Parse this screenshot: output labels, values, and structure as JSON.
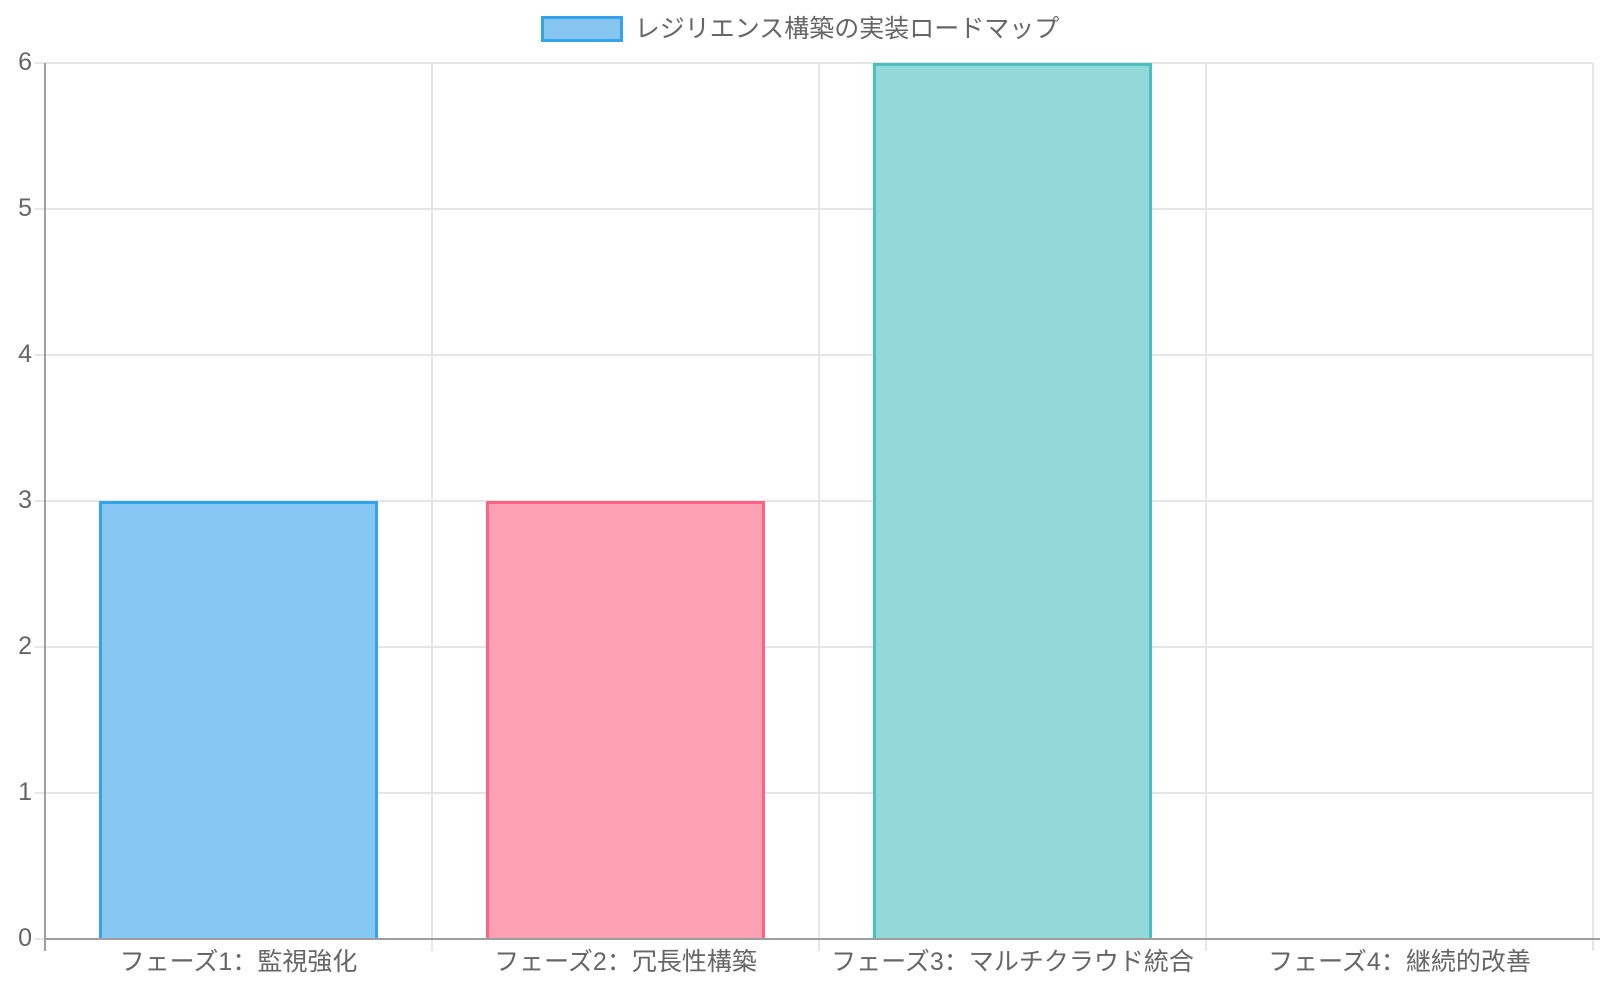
{
  "chart_data": {
    "type": "bar",
    "title": "レジリエンス構築の実装ロードマップ",
    "categories": [
      "フェーズ1：監視強化",
      "フェーズ2：冗長性構築",
      "フェーズ3：マルチクラウド統合",
      "フェーズ4：継続的改善"
    ],
    "values": [
      3,
      3,
      6,
      0
    ],
    "xlabel": "",
    "ylabel": "",
    "ylim": [
      0,
      6
    ],
    "yticks": [
      0,
      1,
      2,
      3,
      4,
      5,
      6
    ],
    "grid": true,
    "legend_position": "top",
    "series": [
      {
        "name": "レジリエンス構築の実装ロードマップ",
        "values": [
          3,
          3,
          6,
          0
        ]
      }
    ],
    "bar_colors": [
      {
        "fill": "#86C7F3",
        "border": "#36A2EB"
      },
      {
        "fill": "#FFA1B5",
        "border": "#FF6384"
      },
      {
        "fill": "#93D9D9",
        "border": "#4BC0C0"
      },
      {
        "fill": "#86C7F3",
        "border": "#36A2EB"
      }
    ]
  },
  "legend": {
    "label": "レジリエンス構築の実装ロードマップ",
    "swatch_fill": "#85C5F0",
    "swatch_border": "#36A2EB"
  },
  "style_colors": {
    "grid": "#E6E6E6",
    "axis": "#9E9E9E",
    "text": "#666666",
    "background": "#FFFFFF"
  }
}
